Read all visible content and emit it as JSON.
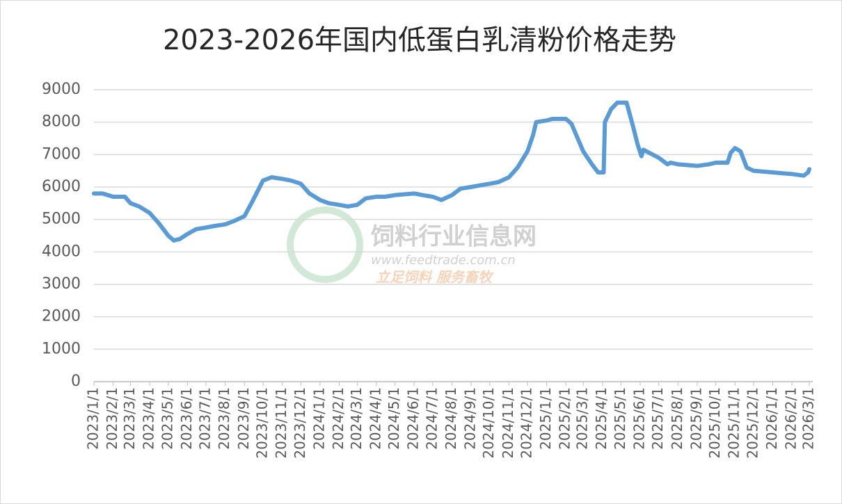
{
  "chart_data": {
    "type": "line",
    "title": "2023-2026年国内低蛋白乳清粉价格走势",
    "x": [
      "2023/1/1",
      "2023/1/15",
      "2023/2/1",
      "2023/2/20",
      "2023/3/1",
      "2023/3/15",
      "2023/4/1",
      "2023/4/15",
      "2023/5/1",
      "2023/5/10",
      "2023/5/20",
      "2023/6/1",
      "2023/6/15",
      "2023/7/1",
      "2023/7/15",
      "2023/8/1",
      "2023/8/15",
      "2023/9/1",
      "2023/9/15",
      "2023/10/1",
      "2023/10/15",
      "2023/11/1",
      "2023/11/15",
      "2023/12/1",
      "2023/12/15",
      "2024/1/1",
      "2024/1/15",
      "2024/2/1",
      "2024/2/15",
      "2024/3/1",
      "2024/3/15",
      "2024/4/1",
      "2024/4/15",
      "2024/5/1",
      "2024/6/1",
      "2024/6/15",
      "2024/7/1",
      "2024/7/15",
      "2024/8/1",
      "2024/8/15",
      "2024/9/1",
      "2024/9/15",
      "2024/10/1",
      "2024/10/15",
      "2024/11/1",
      "2024/11/15",
      "2024/12/1",
      "2024/12/10",
      "2024/12/15",
      "2025/1/1",
      "2025/1/10",
      "2025/2/1",
      "2025/2/10",
      "2025/2/20",
      "2025/3/1",
      "2025/3/15",
      "2025/3/25",
      "2025/4/3",
      "2025/4/5",
      "2025/4/15",
      "2025/4/25",
      "2025/5/10",
      "2025/5/20",
      "2025/5/28",
      "2025/6/3",
      "2025/6/6",
      "2025/7/1",
      "2025/7/15",
      "2025/7/20",
      "2025/8/1",
      "2025/9/1",
      "2025/9/20",
      "2025/10/1",
      "2025/10/20",
      "2025/10/25",
      "2025/11/1",
      "2025/11/10",
      "2025/11/20",
      "2025/12/1",
      "2026/1/1",
      "2026/2/1",
      "2026/2/20",
      "2026/2/27",
      "2026/3/1"
    ],
    "series": [
      {
        "color": "#5b9bd5",
        "values": [
          5800,
          5800,
          5700,
          5700,
          5500,
          5400,
          5200,
          4900,
          4500,
          4350,
          4400,
          4550,
          4700,
          4750,
          4800,
          4850,
          4950,
          5100,
          5600,
          6200,
          6300,
          6250,
          6200,
          6100,
          5800,
          5600,
          5500,
          5450,
          5400,
          5450,
          5650,
          5700,
          5700,
          5750,
          5800,
          5750,
          5700,
          5600,
          5750,
          5950,
          6000,
          6050,
          6100,
          6150,
          6300,
          6600,
          7100,
          7600,
          8000,
          8050,
          8100,
          8100,
          7950,
          7500,
          7100,
          6700,
          6450,
          6450,
          8000,
          8400,
          8600,
          8600,
          7900,
          7300,
          6950,
          7150,
          6900,
          6700,
          6750,
          6700,
          6650,
          6700,
          6750,
          6750,
          7050,
          7200,
          7100,
          6600,
          6500,
          6450,
          6400,
          6350,
          6450,
          6550
        ]
      }
    ],
    "xticks": [
      "2023/1/1",
      "2023/2/1",
      "2023/3/1",
      "2023/4/1",
      "2023/5/1",
      "2023/6/1",
      "2023/7/1",
      "2023/8/1",
      "2023/9/1",
      "2023/10/1",
      "2023/11/1",
      "2023/12/1",
      "2024/1/1",
      "2024/2/1",
      "2024/3/1",
      "2024/4/1",
      "2024/5/1",
      "2024/6/1",
      "2024/7/1",
      "2024/8/1",
      "2024/9/1",
      "2024/10/1",
      "2024/11/1",
      "2024/12/1",
      "2025/1/1",
      "2025/2/1",
      "2025/3/1",
      "2025/4/1",
      "2025/5/1",
      "2025/6/1",
      "2025/7/1",
      "2025/8/1",
      "2025/9/1",
      "2025/10/1",
      "2025/11/1",
      "2025/12/1",
      "2026/1/1",
      "2026/2/1",
      "2026/3/1"
    ],
    "ylim": [
      0,
      9000
    ],
    "yticks": [
      0,
      1000,
      2000,
      3000,
      4000,
      5000,
      6000,
      7000,
      8000,
      9000
    ],
    "grid": true,
    "watermark": {
      "name": "饲料行业信息网",
      "url": "www.feedtrade.com.cn",
      "slogan": "立足饲料 服务畜牧"
    }
  }
}
